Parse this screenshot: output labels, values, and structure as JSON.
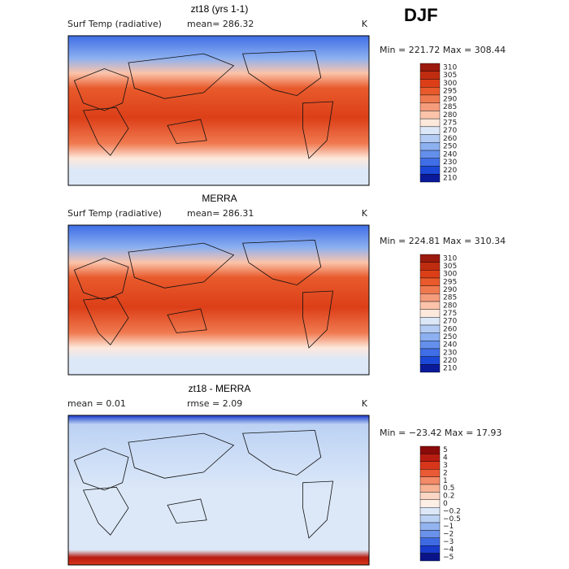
{
  "header": {
    "season": "DJF"
  },
  "panels": [
    {
      "title": "zt18 (yrs 1-1)",
      "field": "Surf Temp (radiative)",
      "stat": "mean= 286.32",
      "units": "K",
      "range": "Min = 221.72 Max = 308.44",
      "colorbar": {
        "labels": [
          "310",
          "305",
          "300",
          "295",
          "290",
          "285",
          "280",
          "275",
          "270",
          "260",
          "250",
          "240",
          "230",
          "220",
          "210"
        ],
        "colors": [
          "#9b1a0d",
          "#c02c10",
          "#dc3f18",
          "#e85a2c",
          "#f07a50",
          "#f59c7c",
          "#fbc4aa",
          "#fde8dc",
          "#dce8f8",
          "#b4ccf4",
          "#8cb0f0",
          "#6490ec",
          "#3f6ee6",
          "#1c48d8",
          "#0a1a9a"
        ]
      }
    },
    {
      "title": "MERRA",
      "field": "Surf Temp (radiative)",
      "stat": "mean= 286.31",
      "units": "K",
      "range": "Min = 224.81 Max = 310.34",
      "colorbar": {
        "labels": [
          "310",
          "305",
          "300",
          "295",
          "290",
          "285",
          "280",
          "275",
          "270",
          "260",
          "250",
          "240",
          "230",
          "220",
          "210"
        ],
        "colors": [
          "#9b1a0d",
          "#c02c10",
          "#dc3f18",
          "#e85a2c",
          "#f07a50",
          "#f59c7c",
          "#fbc4aa",
          "#fde8dc",
          "#dce8f8",
          "#b4ccf4",
          "#8cb0f0",
          "#6490ec",
          "#3f6ee6",
          "#1c48d8",
          "#0a1a9a"
        ]
      }
    },
    {
      "title": "zt18 - MERRA",
      "field": "mean =    0.01",
      "stat": "rmse =    2.09",
      "units": "K",
      "range": "Min = −23.42 Max =   17.93",
      "colorbar": {
        "labels": [
          "5",
          "4",
          "3",
          "2",
          "1",
          "0.5",
          "0.2",
          "0",
          "−0.2",
          "−0.5",
          "−1",
          "−2",
          "−3",
          "−4",
          "−5"
        ],
        "colors": [
          "#8b0a0a",
          "#b81c10",
          "#d8361a",
          "#ea5a34",
          "#f38a68",
          "#f8b294",
          "#fcd6c4",
          "#fdeee6",
          "#dce8f8",
          "#bcd2f4",
          "#94b4f0",
          "#6a92ea",
          "#3e6ae2",
          "#1a3ccc",
          "#0a1488"
        ]
      }
    }
  ]
}
